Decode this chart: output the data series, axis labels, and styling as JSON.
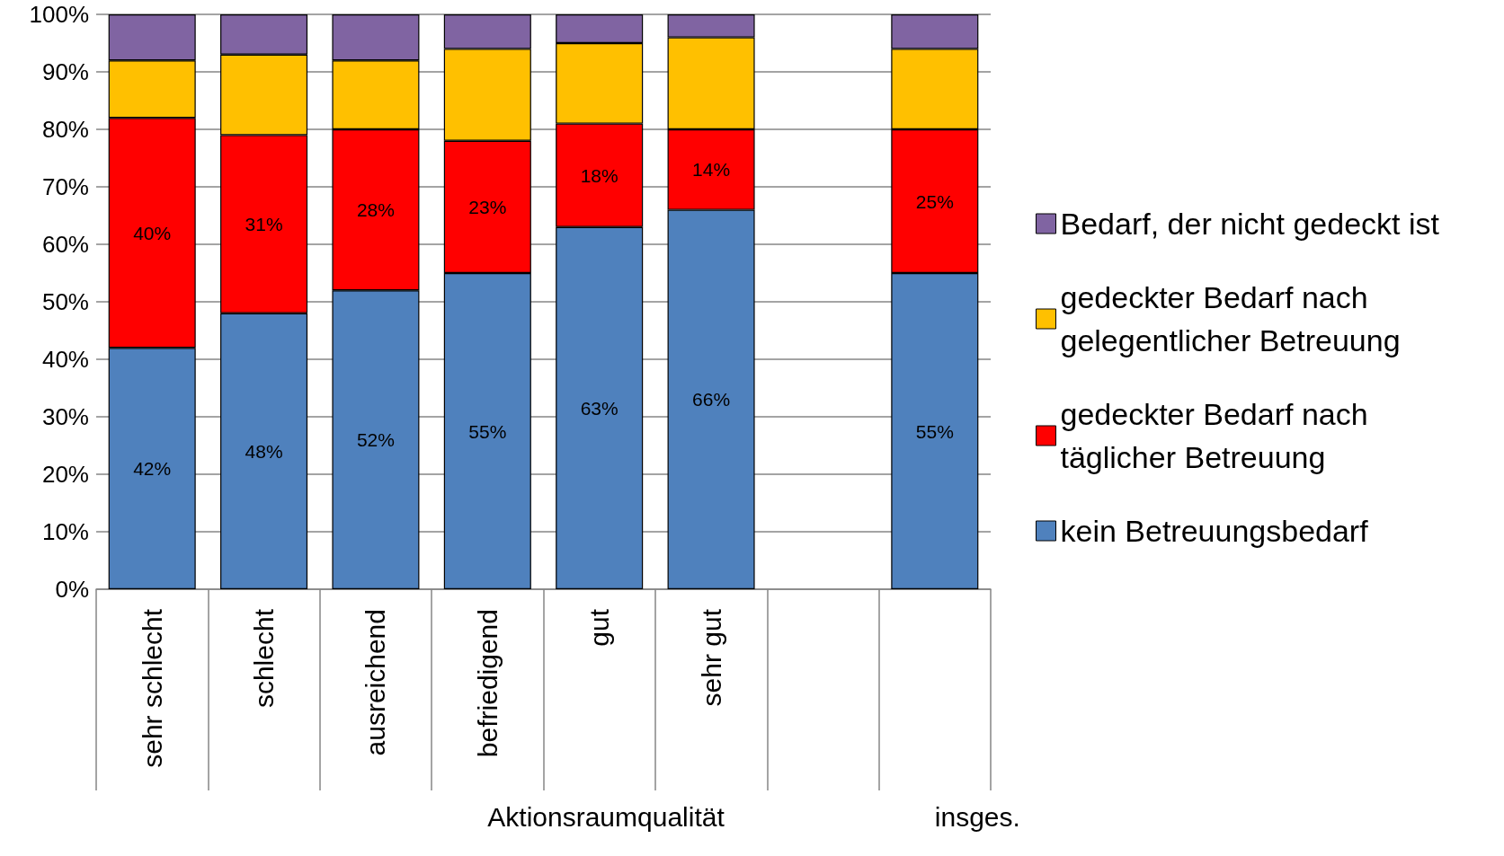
{
  "chart_data": {
    "type": "bar",
    "stacked": true,
    "categories": [
      "sehr schlecht",
      "schlecht",
      "ausreichend",
      "befriedigend",
      "gut",
      "sehr gut",
      null,
      null
    ],
    "xlabel": "Aktionsraumqualität",
    "annotations": [
      "insges."
    ],
    "series": [
      {
        "name": "kein Betreuungsbedarf",
        "color": "#4f81bd",
        "values": [
          42,
          48,
          52,
          55,
          63,
          66,
          null,
          55
        ],
        "value_labels": [
          "42%",
          "48%",
          "52%",
          "55%",
          "63%",
          "66%",
          null,
          "55%"
        ]
      },
      {
        "name": "gedeckter Bedarf nach täglicher Betreuung",
        "color": "#ff0000",
        "values": [
          40,
          31,
          28,
          23,
          18,
          14,
          null,
          25
        ],
        "value_labels": [
          "40%",
          "31%",
          "28%",
          "23%",
          "18%",
          "14%",
          null,
          "25%"
        ]
      },
      {
        "name": "gedeckter Bedarf nach gelegentlicher Betreuung",
        "color": "#ffc000",
        "values": [
          10,
          14,
          12,
          16,
          14,
          16,
          null,
          14
        ]
      },
      {
        "name": "Bedarf, der nicht gedeckt ist",
        "color": "#8064a2",
        "values": [
          8,
          7,
          8,
          6,
          5,
          4,
          null,
          6
        ]
      }
    ],
    "ylim": [
      0,
      100
    ],
    "yticks": [
      {
        "value": 0,
        "label": "0%"
      },
      {
        "value": 10,
        "label": "10%"
      },
      {
        "value": 20,
        "label": "20%"
      },
      {
        "value": 30,
        "label": "30%"
      },
      {
        "value": 40,
        "label": "40%"
      },
      {
        "value": 50,
        "label": "50%"
      },
      {
        "value": 60,
        "label": "60%"
      },
      {
        "value": 70,
        "label": "70%"
      },
      {
        "value": 80,
        "label": "80%"
      },
      {
        "value": 90,
        "label": "90%"
      },
      {
        "value": 100,
        "label": "100%"
      }
    ],
    "grid": "y",
    "legend": "right"
  }
}
